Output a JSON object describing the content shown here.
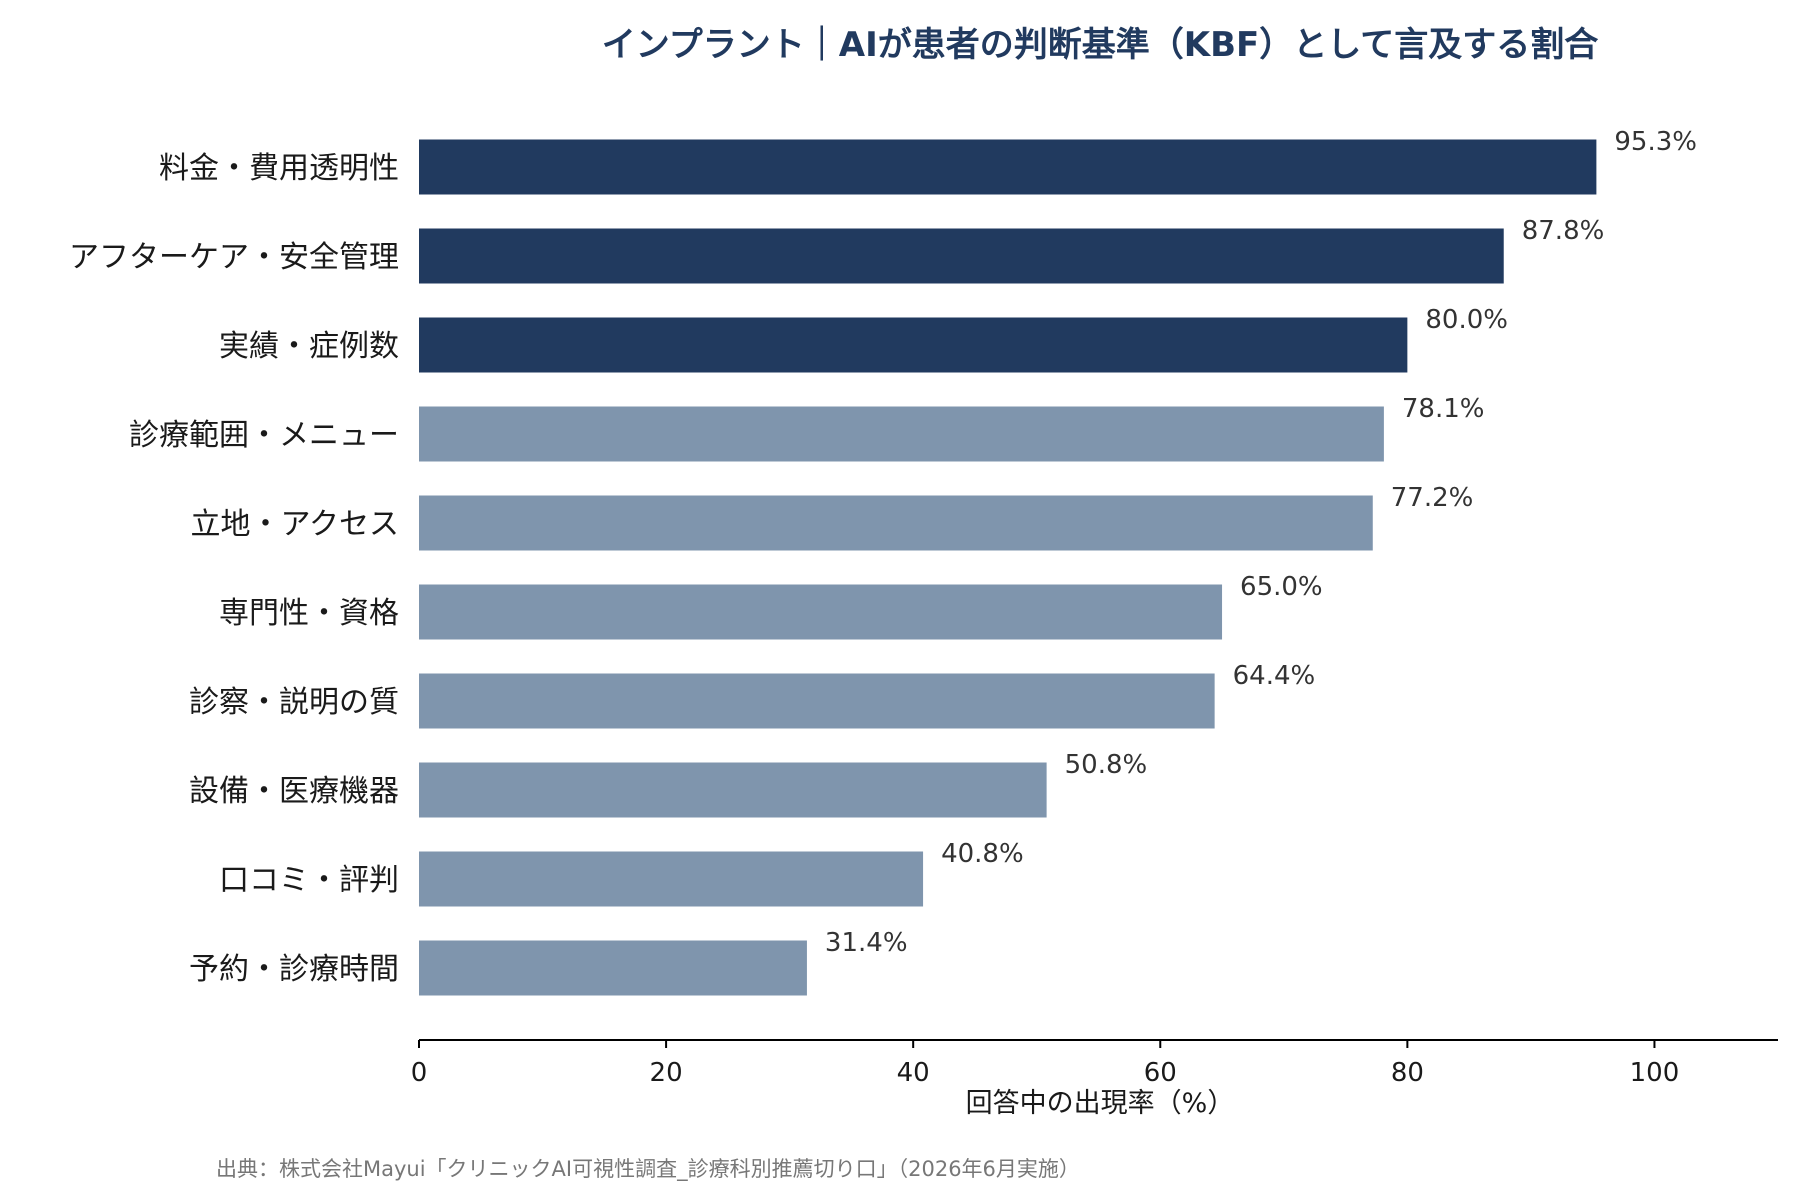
{
  "chart_data": {
    "type": "bar",
    "orientation": "horizontal",
    "title": "インプラント｜AIが患者の判断基準（KBF）として言及する割合",
    "categories": [
      "料金・費用透明性",
      "アフターケア・安全管理",
      "実績・症例数",
      "診療範囲・メニュー",
      "立地・アクセス",
      "専門性・資格",
      "診察・説明の質",
      "設備・医療機器",
      "口コミ・評判",
      "予約・診療時間"
    ],
    "values": [
      95.3,
      87.8,
      80.0,
      78.1,
      77.2,
      65.0,
      64.4,
      50.8,
      40.8,
      31.4
    ],
    "value_labels": [
      "95.3%",
      "87.8%",
      "80.0%",
      "78.1%",
      "77.2%",
      "65.0%",
      "64.4%",
      "50.8%",
      "40.8%",
      "31.4%"
    ],
    "highlight_count": 3,
    "xlabel": "回答中の出現率（%）",
    "ylabel": "",
    "xlim": [
      0,
      110
    ],
    "xticks": [
      0,
      20,
      40,
      60,
      80,
      100
    ],
    "grid": false,
    "legend": "none",
    "colors": {
      "highlight": "#213a5f",
      "default": "#7f95ad",
      "title": "#213a5f",
      "axis": "#000000"
    }
  },
  "source_note": "出典：株式会社Mayui「クリニックAI可視性調査_診療科別推薦切り口」（2026年6月実施）"
}
